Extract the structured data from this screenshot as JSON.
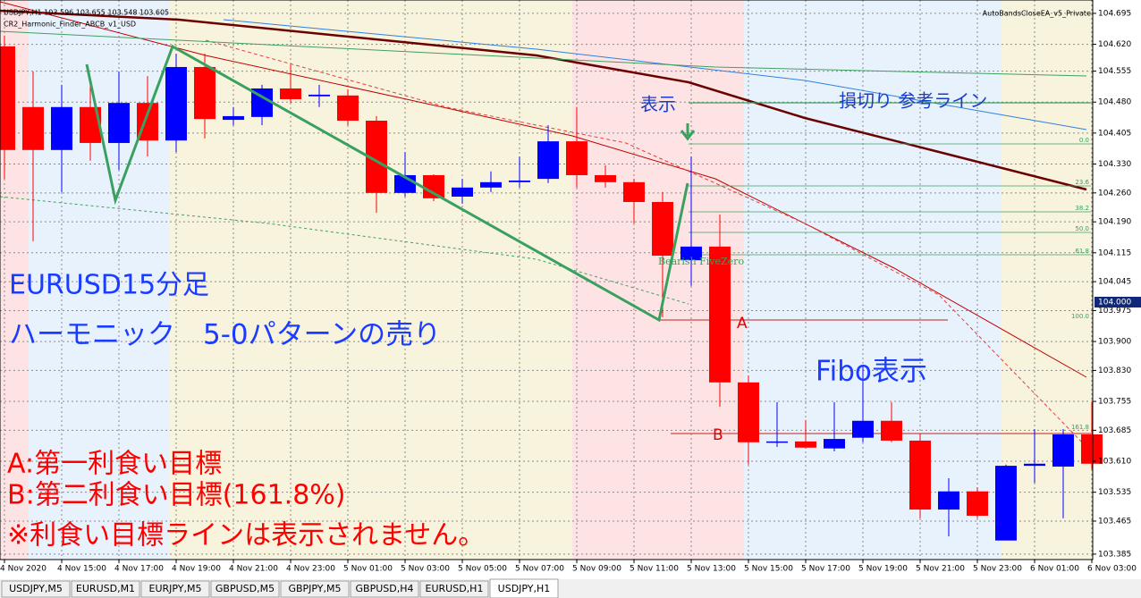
{
  "chart_data": {
    "type": "candlestick",
    "header": "USDJPY,H1  103.596 103.655 103.548 103.605",
    "indicator": "CR2_Harmonic_Finder_ABCB_v1_USD",
    "expert": "AutoBandsCloseEA_v5_Private",
    "current_price": "104.000",
    "up_color": "#0000ff",
    "down_color": "#ff0000",
    "categories": [
      "4 Nov 2020",
      null,
      "4 Nov 15:00",
      null,
      "4 Nov 17:00",
      null,
      "4 Nov 19:00",
      null,
      "4 Nov 21:00",
      null,
      "4 Nov 23:00",
      null,
      "5 Nov 01:00",
      null,
      "5 Nov 03:00",
      null,
      "5 Nov 05:00",
      null,
      "5 Nov 07:00",
      null,
      "5 Nov 09:00",
      null,
      "5 Nov 11:00",
      null,
      "5 Nov 13:00",
      null,
      "5 Nov 15:00",
      null,
      "5 Nov 17:00",
      null,
      "5 Nov 19:00",
      null,
      "5 Nov 21:00",
      null,
      "5 Nov 23:00",
      null,
      "6 Nov 01:00",
      null,
      "6 Nov 03:00"
    ],
    "open": [
      104.615,
      104.468,
      104.364,
      104.468,
      104.381,
      104.478,
      104.387,
      104.565,
      104.437,
      104.444,
      104.513,
      104.494,
      104.496,
      104.435,
      104.26,
      104.303,
      104.251,
      104.273,
      104.286,
      104.294,
      104.385,
      104.303,
      104.286,
      104.238,
      104.097,
      104.13,
      103.801,
      103.656,
      103.658,
      103.641,
      103.667,
      103.708,
      103.66,
      103.493,
      103.537,
      103.418,
      103.599,
      103.597,
      103.675
    ],
    "high": [
      104.641,
      104.554,
      104.522,
      104.532,
      104.554,
      104.543,
      104.597,
      104.597,
      104.468,
      104.522,
      104.571,
      104.522,
      104.511,
      104.446,
      104.359,
      104.305,
      104.294,
      104.312,
      104.348,
      104.424,
      104.468,
      104.327,
      104.294,
      104.262,
      104.348,
      104.208,
      103.818,
      103.753,
      103.71,
      103.753,
      103.84,
      103.753,
      103.677,
      103.569,
      103.547,
      103.602,
      103.688,
      103.688,
      103.753
    ],
    "low": [
      104.294,
      104.143,
      104.262,
      104.338,
      104.316,
      104.348,
      104.359,
      104.392,
      104.424,
      104.424,
      104.478,
      104.468,
      104.424,
      104.212,
      104.251,
      104.24,
      104.234,
      104.262,
      104.273,
      104.284,
      104.273,
      104.273,
      104.186,
      103.959,
      104.035,
      103.742,
      103.602,
      103.645,
      103.641,
      103.634,
      103.656,
      103.656,
      103.472,
      103.428,
      103.472,
      103.418,
      103.558,
      103.472,
      103.591
    ],
    "close": [
      104.364,
      104.364,
      104.468,
      104.381,
      104.478,
      104.387,
      104.565,
      104.439,
      104.446,
      104.513,
      104.487,
      104.498,
      104.435,
      104.26,
      104.303,
      104.247,
      104.273,
      104.286,
      104.29,
      104.385,
      104.303,
      104.286,
      104.238,
      104.108,
      104.13,
      103.801,
      103.656,
      103.658,
      103.643,
      103.664,
      103.708,
      103.66,
      103.493,
      103.537,
      103.478,
      103.599,
      103.604,
      103.675,
      103.604
    ],
    "ylim": [
      103.374,
      104.71
    ],
    "yticks": [
      {
        "value": 104.695,
        "label": "104.695"
      },
      {
        "value": 104.62,
        "label": "104.620"
      },
      {
        "value": 104.555,
        "label": "104.555"
      },
      {
        "value": 104.48,
        "label": "104.480"
      },
      {
        "value": 104.405,
        "label": "104.405"
      },
      {
        "value": 104.33,
        "label": "104.330"
      },
      {
        "value": 104.26,
        "label": "104.260"
      },
      {
        "value": 104.19,
        "label": "104.190"
      },
      {
        "value": 104.115,
        "label": "104.115"
      },
      {
        "value": 104.045,
        "label": "104.045"
      },
      {
        "value": 103.975,
        "label": "103.975"
      },
      {
        "value": 103.9,
        "label": "103.900"
      },
      {
        "value": 103.83,
        "label": "103.830"
      },
      {
        "value": 103.755,
        "label": "103.755"
      },
      {
        "value": 103.685,
        "label": "103.685"
      },
      {
        "value": 103.61,
        "label": "103.610"
      },
      {
        "value": 103.535,
        "label": "103.535"
      },
      {
        "value": 103.465,
        "label": "103.465"
      },
      {
        "value": 103.385,
        "label": "103.385"
      }
    ],
    "grid": true,
    "fib_labels": [
      "0.0",
      "23.6",
      "38.2",
      "50.0",
      "61.8",
      "100.0",
      "161.8"
    ],
    "pattern_label": "Bearish FiveZero",
    "annotations": [
      "表示",
      "損切り 参考ライン",
      "EURUSD15分足",
      "ハーモニック　5-0パターンの売り",
      "Fibo表示",
      "A",
      "B",
      "A:第一利食い目標",
      "B:第二利食い目標(161.8%)",
      "※利食い目標ラインは表示されません。"
    ],
    "tabs": [
      "USDJPY,M5",
      "EURUSD,M1",
      "EURJPY,M5",
      "GBPUSD,M5",
      "GBPJPY,M5",
      "GBPUSD,H4",
      "EURUSD,H1",
      "USDJPY,H1"
    ],
    "active_tab": "USDJPY,H1"
  }
}
